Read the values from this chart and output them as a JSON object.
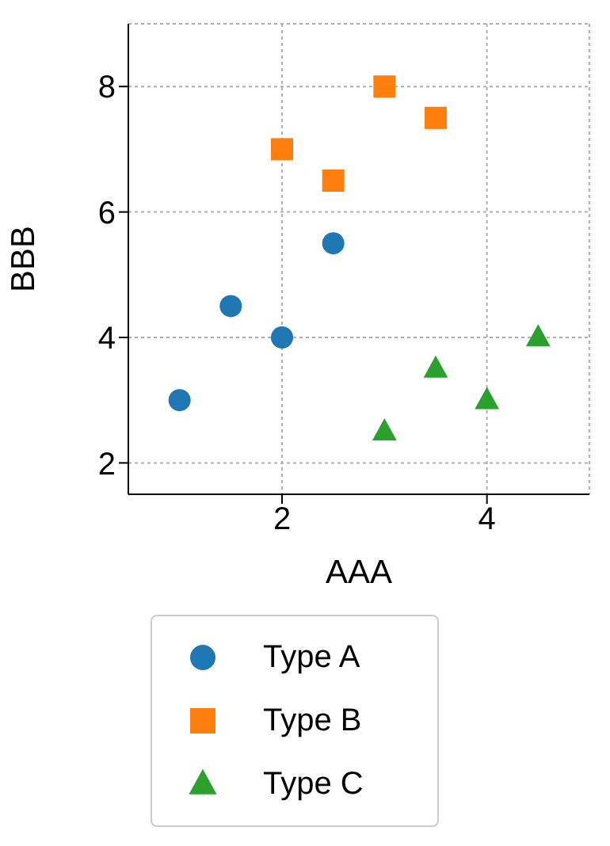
{
  "chart_data": {
    "type": "scatter",
    "xlabel": "AAA",
    "ylabel": "BBB",
    "xlim": [
      0.5,
      5
    ],
    "ylim": [
      1.5,
      9
    ],
    "xticks": [
      2,
      4
    ],
    "yticks": [
      2,
      4,
      6,
      8
    ],
    "grid": true,
    "legend": "bottom",
    "series": [
      {
        "name": "Type A",
        "color": "#1f77b4",
        "marker": "circle",
        "x": [
          1,
          1.5,
          2,
          2.5
        ],
        "values": [
          3,
          4.5,
          4,
          5.5
        ]
      },
      {
        "name": "Type B",
        "color": "#ff7f0e",
        "marker": "square",
        "x": [
          2,
          2.5,
          3,
          3.5
        ],
        "values": [
          7,
          6.5,
          8,
          7.5
        ]
      },
      {
        "name": "Type C",
        "color": "#2ca02c",
        "marker": "triangle",
        "x": [
          3,
          3.5,
          4,
          4.5
        ],
        "values": [
          2.5,
          3.5,
          3,
          4
        ]
      }
    ]
  }
}
